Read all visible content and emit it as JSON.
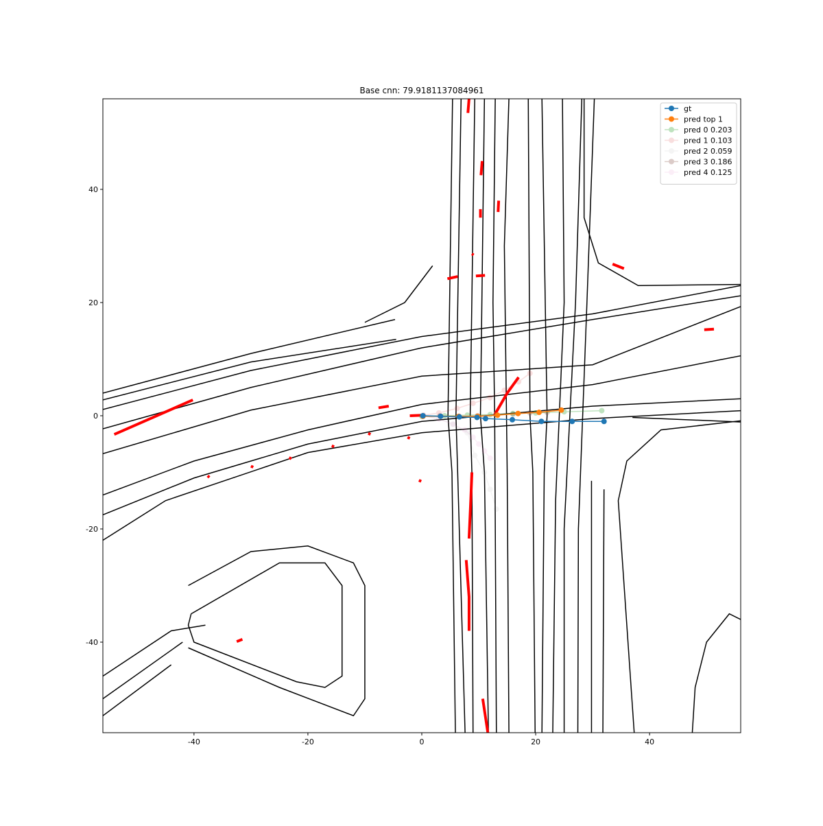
{
  "chart_data": {
    "type": "line",
    "title": "Base cnn: 79.9181137084961",
    "xlim": [
      -56,
      56
    ],
    "ylim": [
      -56,
      56
    ],
    "xticks": [
      -40,
      -20,
      0,
      20,
      40
    ],
    "yticks": [
      -40,
      -20,
      0,
      20,
      40
    ],
    "legend": "upper right",
    "map_color": "#000000",
    "marking_color": "#ff0000",
    "series": [
      {
        "name": "gt",
        "color": "#1f77b4",
        "opacity": 1,
        "x": [
          0.2,
          3.3,
          6.6,
          9.7,
          11.2,
          15.9,
          21.0,
          26.4,
          32.0
        ],
        "values": [
          0,
          -0.1,
          -0.2,
          -0.3,
          -0.5,
          -0.7,
          -1.0,
          -1.0,
          -1.0
        ]
      },
      {
        "name": "pred top 1",
        "color": "#ff7f0e",
        "opacity": 1,
        "x": [
          0.2,
          3.3,
          6.5,
          9.8,
          13.3,
          16.9,
          20.6,
          24.5
        ],
        "values": [
          -0.1,
          -0.1,
          -0.1,
          -0.1,
          0.1,
          0.4,
          0.6,
          1.0
        ]
      },
      {
        "name": "pred 0 0.203",
        "color": "#2ca02c",
        "opacity": 0.3,
        "x": [
          0,
          4,
          8,
          12,
          16,
          20,
          25,
          31.6
        ],
        "values": [
          -0.1,
          0,
          0.1,
          0.2,
          0.4,
          0.5,
          0.7,
          0.9
        ]
      },
      {
        "name": "pred 1 0.103",
        "color": "#d62728",
        "opacity": 0.15,
        "x": [
          0.3,
          3,
          6.2,
          9,
          12,
          14.5,
          17,
          19
        ],
        "values": [
          0.1,
          0.5,
          1.3,
          2.2,
          3.2,
          4.5,
          6,
          7.5
        ]
      },
      {
        "name": "pred 2 0.059",
        "color": "#7f7f7f",
        "opacity": 0.08,
        "x": [
          0.3,
          3,
          5.5,
          8,
          9.3,
          11,
          12,
          13.1
        ],
        "values": [
          0,
          -0.5,
          -1.5,
          -3,
          -7,
          -10,
          -13,
          -16.5
        ]
      },
      {
        "name": "pred 3 0.186",
        "color": "#8c564b",
        "opacity": 0.3,
        "x": [
          0.2,
          3.2,
          6.5,
          9.8,
          13,
          16,
          19,
          22
        ],
        "values": [
          0,
          0,
          -0.1,
          0,
          0.2,
          0.3,
          0.5,
          0.6
        ]
      },
      {
        "name": "pred 4 0.125",
        "color": "#e377c2",
        "opacity": 0.12,
        "x": [
          0.3,
          3,
          5.5,
          7.5,
          9,
          10,
          11,
          12
        ],
        "values": [
          0,
          -0.6,
          -1.5,
          -2.5,
          -3.8,
          -5,
          -6.2,
          -7.5
        ]
      }
    ],
    "map_lines": [
      {
        "x": [
          5.4,
          4.6,
          5.3,
          5.9
        ],
        "y": [
          56,
          0,
          -10,
          -56
        ]
      },
      {
        "x": [
          6.9,
          6.0,
          6.3,
          7.6
        ],
        "y": [
          56,
          0,
          -10,
          -56
        ]
      },
      {
        "x": [
          9.3,
          8.5,
          8.8,
          9.0
        ],
        "y": [
          56,
          0,
          -10,
          -56
        ]
      },
      {
        "x": [
          11.0,
          10.3,
          11.0,
          11.7
        ],
        "y": [
          56,
          0,
          -10,
          -56
        ]
      },
      {
        "x": [
          12.9,
          12.5,
          12.8,
          13.1
        ],
        "y": [
          56,
          20,
          0,
          -56
        ]
      },
      {
        "x": [
          15.3,
          14.5,
          15.0,
          15.3
        ],
        "y": [
          56,
          30,
          -10,
          -56
        ]
      },
      {
        "x": [
          18.7,
          19.0,
          19.5,
          19.9
        ],
        "y": [
          56,
          0,
          -10,
          -56
        ]
      },
      {
        "x": [
          21.1,
          22.0,
          21.5,
          21.1
        ],
        "y": [
          56,
          0,
          -10,
          -56
        ]
      },
      {
        "x": [
          24.7,
          25.0,
          23.5,
          23.0
        ],
        "y": [
          56,
          20,
          -15,
          -56
        ]
      },
      {
        "x": [
          28.1,
          27.0,
          25.0,
          25.0
        ],
        "y": [
          56,
          20,
          -20,
          -56
        ]
      },
      {
        "x": [
          30.3,
          29.0,
          27.5,
          27.4
        ],
        "y": [
          56,
          20,
          -20,
          -56
        ]
      },
      {
        "x": [
          29.8,
          29.8
        ],
        "y": [
          -11.5,
          -56
        ]
      },
      {
        "x": [
          32.0,
          31.8
        ],
        "y": [
          -13,
          -56
        ]
      },
      {
        "x": [
          -56,
          -30,
          -4.7
        ],
        "y": [
          4.0,
          11,
          17.0
        ]
      },
      {
        "x": [
          -56,
          -30,
          -4.5
        ],
        "y": [
          2.8,
          9.5,
          13.5
        ]
      },
      {
        "x": [
          -56,
          -30,
          0,
          30,
          56
        ],
        "y": [
          1.1,
          8,
          14,
          18,
          23.0
        ]
      },
      {
        "x": [
          -56,
          -30,
          0,
          30,
          56
        ],
        "y": [
          -2.3,
          5,
          12,
          17,
          21.2
        ]
      },
      {
        "x": [
          -56,
          -30,
          0,
          30,
          56
        ],
        "y": [
          -6.7,
          1,
          7,
          9,
          19.3
        ]
      },
      {
        "x": [
          -56,
          -40,
          -20,
          0,
          30,
          56
        ],
        "y": [
          -14.0,
          -8,
          -2.5,
          2,
          5.5,
          10.6
        ]
      },
      {
        "x": [
          -56,
          -40,
          -20,
          0,
          30,
          56
        ],
        "y": [
          -17.5,
          -11,
          -5,
          -1,
          1.7,
          3.0
        ]
      },
      {
        "x": [
          -56,
          -45,
          -20,
          0,
          30,
          56
        ],
        "y": [
          -22,
          -15,
          -6.5,
          -3,
          -0.5,
          0.9
        ]
      },
      {
        "x": [
          37,
          56
        ],
        "y": [
          -0.3,
          -1.1
        ]
      },
      {
        "x": [
          -40.5,
          -25,
          -17,
          -14,
          -14,
          -17,
          -22,
          -40,
          -41,
          -40.5
        ],
        "y": [
          -35,
          -26,
          -26,
          -30,
          -46,
          -48,
          -47,
          -40,
          -37,
          -35
        ]
      },
      {
        "x": [
          -41,
          -30,
          -20,
          -12,
          -10,
          -10,
          -12,
          -25,
          -41
        ],
        "y": [
          -30,
          -24,
          -23,
          -26,
          -30,
          -50,
          -53,
          -48,
          -41
        ]
      },
      {
        "x": [
          -56,
          -44,
          -38
        ],
        "y": [
          -46,
          -38,
          -37
        ]
      },
      {
        "x": [
          -56,
          -42
        ],
        "y": [
          -50,
          -40
        ]
      },
      {
        "x": [
          -56,
          -44
        ],
        "y": [
          -53,
          -44
        ]
      },
      {
        "x": [
          56,
          54,
          50,
          48,
          47.5
        ],
        "y": [
          -36,
          -35,
          -40,
          -48,
          -56
        ]
      },
      {
        "x": [
          56,
          42,
          36,
          34.5,
          37.3
        ],
        "y": [
          -0.9,
          -2.5,
          -8,
          -15,
          -56
        ]
      },
      {
        "x": [
          28.5,
          28.5,
          31,
          38,
          56
        ],
        "y": [
          56,
          35,
          27,
          23,
          23.2
        ]
      },
      {
        "x": [
          1.9,
          -3,
          -10
        ],
        "y": [
          26.5,
          20,
          16.5
        ]
      }
    ],
    "red_segments": [
      {
        "x": [
          -54.0,
          -40.2
        ],
        "y": [
          -3.3,
          2.8
        ]
      },
      {
        "x": [
          8.1,
          8.3
        ],
        "y": [
          53.5,
          56
        ]
      },
      {
        "x": [
          10.6,
          10.4
        ],
        "y": [
          45,
          42.5
        ]
      },
      {
        "x": [
          10.3,
          10.3
        ],
        "y": [
          36.5,
          35
        ]
      },
      {
        "x": [
          13.5,
          13.4
        ],
        "y": [
          38,
          36
        ]
      },
      {
        "x": [
          4.5,
          6.3
        ],
        "y": [
          24.2,
          24.6
        ]
      },
      {
        "x": [
          9.5,
          11.1
        ],
        "y": [
          24.7,
          24.8
        ]
      },
      {
        "x": [
          8.8,
          9.1
        ],
        "y": [
          28.6,
          28.4
        ]
      },
      {
        "x": [
          33.5,
          35.5
        ],
        "y": [
          26.8,
          26
        ]
      },
      {
        "x": [
          49.6,
          51.3
        ],
        "y": [
          15.2,
          15.3
        ]
      },
      {
        "x": [
          12.7,
          15,
          17
        ],
        "y": [
          0,
          4,
          6.8
        ]
      },
      {
        "x": [
          -7.6,
          -5.8
        ],
        "y": [
          1.4,
          1.7
        ]
      },
      {
        "x": [
          -2.1,
          0.5
        ],
        "y": [
          0,
          0.1
        ]
      },
      {
        "x": [
          8.8,
          8.6,
          8.3
        ],
        "y": [
          -10,
          -15,
          -21.7
        ]
      },
      {
        "x": [
          7.8,
          8.3,
          8.3
        ],
        "y": [
          -25.5,
          -32,
          -38
        ]
      },
      {
        "x": [
          10.7,
          11.6
        ],
        "y": [
          -50,
          -56
        ]
      },
      {
        "x": [
          -37.6,
          -37.3
        ],
        "y": [
          -10.6,
          -10.9
        ]
      },
      {
        "x": [
          -30.0,
          -29.6
        ],
        "y": [
          -8.9,
          -9.1
        ]
      },
      {
        "x": [
          -23.3,
          -22.9
        ],
        "y": [
          -7.4,
          -7.6
        ]
      },
      {
        "x": [
          -15.8,
          -15.4
        ],
        "y": [
          -5.3,
          -5.5
        ]
      },
      {
        "x": [
          -9.4,
          -9.0
        ],
        "y": [
          -3.1,
          -3.3
        ]
      },
      {
        "x": [
          -2.5,
          -2.1
        ],
        "y": [
          -3.8,
          -4.0
        ]
      },
      {
        "x": [
          -0.5,
          -0.1
        ],
        "y": [
          -11.4,
          -11.6
        ]
      },
      {
        "x": [
          -32.5,
          -31.5
        ],
        "y": [
          -39.9,
          -39.5
        ]
      }
    ]
  }
}
